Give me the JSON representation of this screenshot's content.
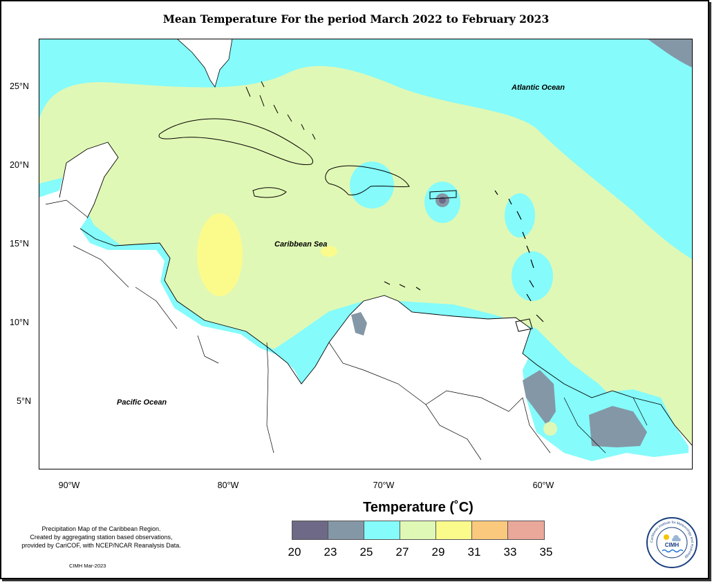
{
  "title": "Mean Temperature For the period March 2022 to February 2023",
  "map": {
    "place_labels": {
      "atlantic": "Atlantic Ocean",
      "caribbean": "Caribbean Sea",
      "pacific": "Pacific Ocean"
    },
    "y_ticks": [
      "25°N",
      "20°N",
      "15°N",
      "10°N",
      "5°N"
    ],
    "x_ticks": [
      "90°W",
      "80°W",
      "70°W",
      "60°W"
    ]
  },
  "legend": {
    "title": "Temperature (˚C)",
    "breaks": [
      "20",
      "23",
      "25",
      "27",
      "29",
      "31",
      "33",
      "35"
    ],
    "colors": [
      "#6e6987",
      "#8497a6",
      "#85fbfb",
      "#e0f8b5",
      "#fbfb8c",
      "#fbc97d",
      "#eaa89a"
    ]
  },
  "note": {
    "line1": "Precipitation Map of the Caribbean Region.",
    "line2": "Created by aggregating station based observations,",
    "line3": "provided by CariCOF, with NCEP/NCAR Reanalysis Data."
  },
  "credit": "CIMH Mar-2023",
  "logo": {
    "name": "CIMH",
    "ring_text": "Caribbean Institute for Meteorology and Hydrology"
  },
  "colors": {
    "land": "#ffffff",
    "water_cool": "#85fbfb",
    "water_warm": "#e0f8b5",
    "hot": "#fbfb8c",
    "cold": "#8497a6",
    "coldest": "#6e6987"
  }
}
